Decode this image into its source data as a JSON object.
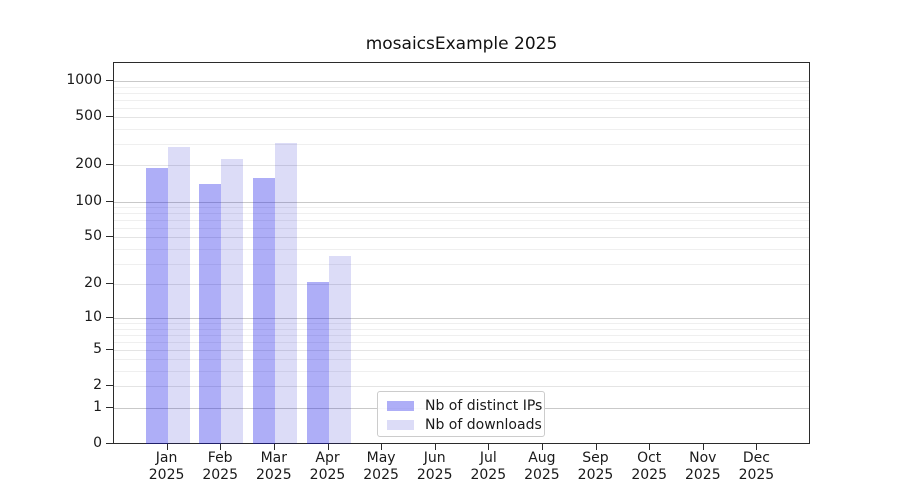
{
  "chart_data": {
    "type": "bar",
    "title": "mosaicsExample 2025",
    "categories": [
      "Jan 2025",
      "Feb 2025",
      "Mar 2025",
      "Apr 2025",
      "May 2025",
      "Jun 2025",
      "Jul 2025",
      "Aug 2025",
      "Sep 2025",
      "Oct 2025",
      "Nov 2025",
      "Dec 2025"
    ],
    "x_tick_months": [
      "Jan",
      "Feb",
      "Mar",
      "Apr",
      "May",
      "Jun",
      "Jul",
      "Aug",
      "Sep",
      "Oct",
      "Nov",
      "Dec"
    ],
    "x_tick_year": "2025",
    "series": [
      {
        "name": "Nb of distinct IPs",
        "color": "rgba(10,10,230,0.33)",
        "color_hex_on_white": "#aeaef7",
        "values": [
          190,
          141,
          158,
          21,
          null,
          null,
          null,
          null,
          null,
          null,
          null,
          null
        ]
      },
      {
        "name": "Nb of downloads",
        "color": "rgba(10,10,200,0.14)",
        "color_hex_on_white": "#dddDF7",
        "values": [
          285,
          227,
          306,
          35,
          null,
          null,
          null,
          null,
          null,
          null,
          null,
          null
        ]
      }
    ],
    "y_ticks": [
      0,
      1,
      2,
      5,
      10,
      20,
      50,
      100,
      200,
      500,
      1000
    ],
    "y_minor_ticks": [
      3,
      4,
      6,
      7,
      8,
      9,
      30,
      40,
      60,
      70,
      80,
      90,
      300,
      400,
      600,
      700,
      800,
      900
    ],
    "yscale": "symlog (position proportional to log10(1+value))",
    "ylim": [
      0,
      1400
    ],
    "xlabel": "",
    "ylabel": "",
    "grid": "horizontal, major and minor",
    "legend_position": "lower center inside plot"
  }
}
